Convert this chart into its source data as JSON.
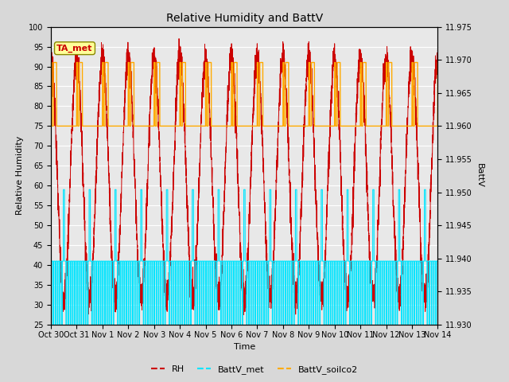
{
  "title": "Relative Humidity and BattV",
  "ylabel_left": "Relative Humidity",
  "ylabel_right": "BattV",
  "xlabel": "Time",
  "ylim_left": [
    25,
    100
  ],
  "ylim_right": [
    11.93,
    11.975
  ],
  "background_color": "#d8d8d8",
  "plot_bg_color": "#e8e8e8",
  "rh_color": "#cc0000",
  "battv_met_color": "#00e5ff",
  "battv_soilco2_color": "#ffaa00",
  "annotation_text": "TA_met",
  "annotation_bg": "#ffff99",
  "annotation_border": "#aaaa00",
  "legend_rh": "RH",
  "legend_battv_met": "BattV_met",
  "legend_battv_soilco2": "BattV_soilco2",
  "x_tick_labels": [
    "Oct 30",
    "Oct 31",
    "Nov 1",
    "Nov 2",
    "Nov 3",
    "Nov 4",
    "Nov 5",
    "Nov 6",
    "Nov 7",
    "Nov 8",
    "Nov 9",
    "Nov 10",
    "Nov 11",
    "Nov 12",
    "Nov 13",
    "Nov 14"
  ],
  "n_days": 15,
  "figsize": [
    6.4,
    4.8
  ],
  "dpi": 100
}
